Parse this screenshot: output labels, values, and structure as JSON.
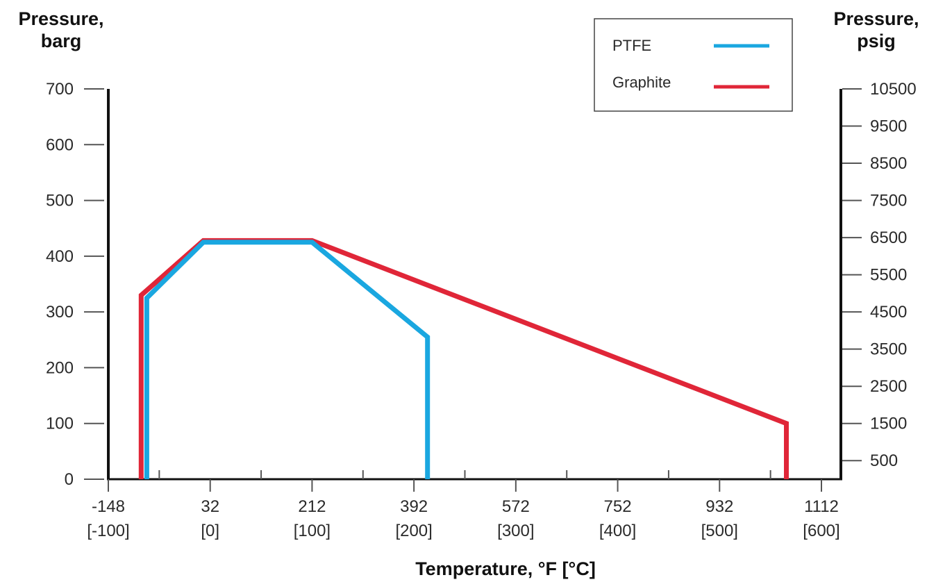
{
  "chart_data": {
    "type": "line",
    "title": "",
    "left_axis_title": [
      "Pressure,",
      "barg"
    ],
    "right_axis_title": [
      "Pressure,",
      "psig"
    ],
    "xlabel": "Temperature, °F [°C]",
    "x_ticks": [
      {
        "f": -148,
        "label_f": "-148",
        "label_c": "[-100]"
      },
      {
        "f": 32,
        "label_f": "32",
        "label_c": "[0]"
      },
      {
        "f": 212,
        "label_f": "212",
        "label_c": "[100]"
      },
      {
        "f": 392,
        "label_f": "392",
        "label_c": "[200]"
      },
      {
        "f": 572,
        "label_f": "572",
        "label_c": "[300]"
      },
      {
        "f": 752,
        "label_f": "752",
        "label_c": "[400]"
      },
      {
        "f": 932,
        "label_f": "932",
        "label_c": "[500]"
      },
      {
        "f": 1112,
        "label_f": "1112",
        "label_c": "[600]"
      }
    ],
    "x_minor_ticks_f": [
      -58,
      122,
      302,
      482,
      662,
      842,
      1022
    ],
    "xlim_f": [
      -148,
      1112
    ],
    "left_ticks": [
      {
        "v": 0,
        "label": "0"
      },
      {
        "v": 100,
        "label": "100"
      },
      {
        "v": 200,
        "label": "200"
      },
      {
        "v": 300,
        "label": "300"
      },
      {
        "v": 400,
        "label": "400"
      },
      {
        "v": 500,
        "label": "500"
      },
      {
        "v": 600,
        "label": "600"
      },
      {
        "v": 700,
        "label": "700"
      }
    ],
    "ylim_barg": [
      0,
      700
    ],
    "right_ticks": [
      {
        "v": 500,
        "label": "500"
      },
      {
        "v": 1500,
        "label": "1500"
      },
      {
        "v": 2500,
        "label": "2500"
      },
      {
        "v": 3500,
        "label": "3500"
      },
      {
        "v": 4500,
        "label": "4500"
      },
      {
        "v": 5500,
        "label": "5500"
      },
      {
        "v": 6500,
        "label": "6500"
      },
      {
        "v": 7500,
        "label": "7500"
      },
      {
        "v": 8500,
        "label": "8500"
      },
      {
        "v": 9500,
        "label": "9500"
      },
      {
        "v": 10500,
        "label": "10500"
      }
    ],
    "ylim_psig": [
      0,
      10500
    ],
    "legend_position": "top-right",
    "series": [
      {
        "name": "PTFE",
        "color": "#1aa7e0",
        "points": [
          [
            -80,
            0
          ],
          [
            -80,
            325
          ],
          [
            20,
            425
          ],
          [
            212,
            425
          ],
          [
            416,
            255
          ],
          [
            416,
            0
          ]
        ]
      },
      {
        "name": "Graphite",
        "color": "#e02638",
        "points": [
          [
            -90,
            0
          ],
          [
            -90,
            330
          ],
          [
            20,
            428
          ],
          [
            212,
            428
          ],
          [
            1050,
            100
          ],
          [
            1050,
            0
          ]
        ]
      }
    ]
  }
}
